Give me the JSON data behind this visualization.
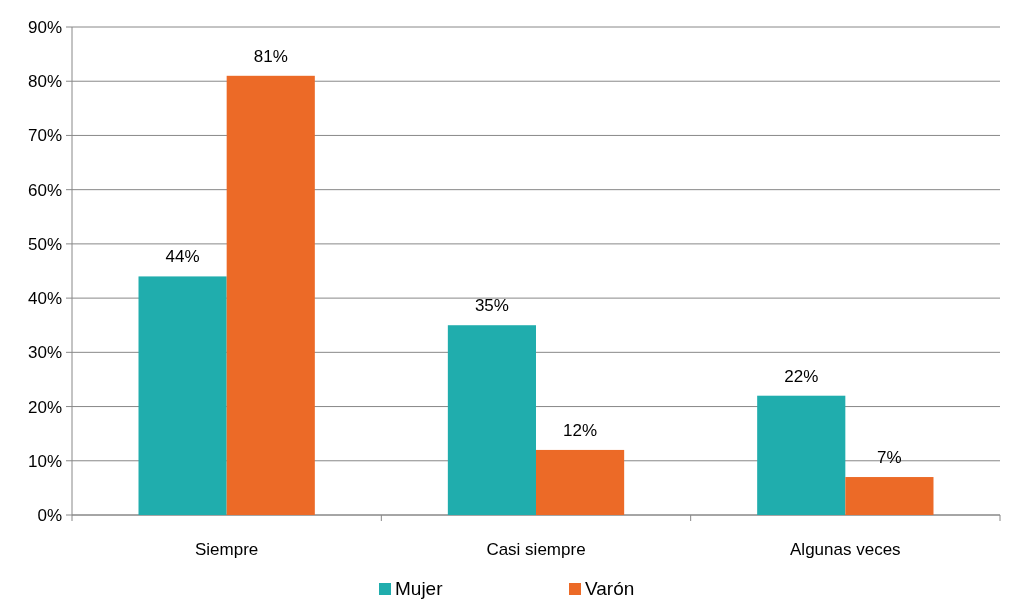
{
  "chart_data": {
    "type": "bar",
    "categories": [
      "Siempre",
      "Casi siempre",
      "Algunas veces"
    ],
    "series": [
      {
        "name": "Mujer",
        "color": "#20adad",
        "values": [
          44,
          35,
          22
        ],
        "value_labels": [
          "44%",
          "35%",
          "22%"
        ]
      },
      {
        "name": "Varón",
        "color": "#ec6a27",
        "values": [
          81,
          12,
          7
        ],
        "value_labels": [
          "81%",
          "12%",
          "7%"
        ]
      }
    ],
    "ylim": [
      0,
      90
    ],
    "yticks": [
      {
        "value": 0,
        "label": "0%"
      },
      {
        "value": 10,
        "label": "10%"
      },
      {
        "value": 20,
        "label": "20%"
      },
      {
        "value": 30,
        "label": "30%"
      },
      {
        "value": 40,
        "label": "40%"
      },
      {
        "value": 50,
        "label": "50%"
      },
      {
        "value": 60,
        "label": "60%"
      },
      {
        "value": 70,
        "label": "70%"
      },
      {
        "value": 80,
        "label": "80%"
      },
      {
        "value": 90,
        "label": "90%"
      }
    ],
    "grid": "y",
    "legend": "bottom"
  }
}
